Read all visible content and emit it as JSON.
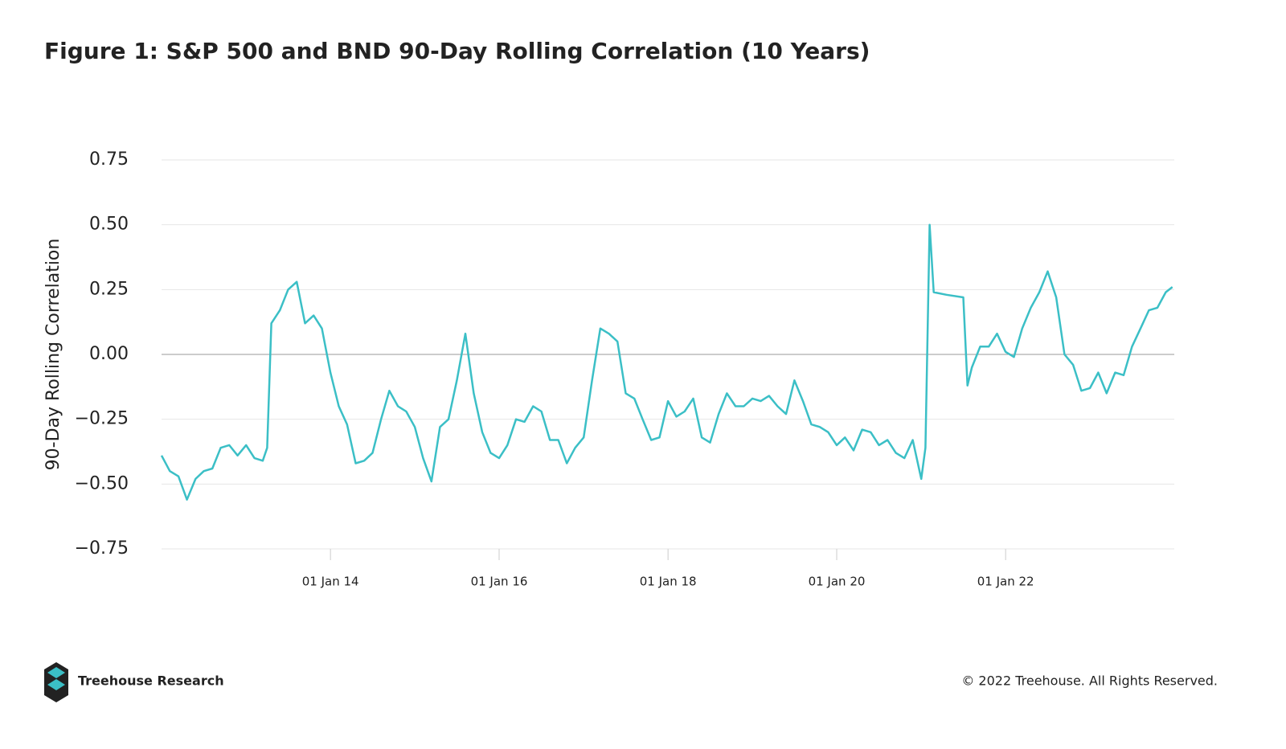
{
  "chart_data": {
    "type": "line",
    "title": "Figure 1: S&P 500 and BND 90-Day Rolling Correlation (10 Years)",
    "y_label": "90-Day Rolling Correlation",
    "color": "#3bbfc6",
    "x": [
      "2012-01-01",
      "2012-02-06",
      "2012-03-14",
      "2012-04-20",
      "2012-05-27",
      "2012-07-02",
      "2012-08-08",
      "2012-09-13",
      "2012-10-20",
      "2012-11-25",
      "2013-01-01",
      "2013-02-06",
      "2013-03-14",
      "2013-04-02",
      "2013-04-20",
      "2013-05-27",
      "2013-07-02",
      "2013-08-08",
      "2013-09-13",
      "2013-10-20",
      "2013-11-25",
      "2014-01-01",
      "2014-02-06",
      "2014-03-14",
      "2014-04-20",
      "2014-05-27",
      "2014-07-02",
      "2014-08-08",
      "2014-09-13",
      "2014-10-20",
      "2014-11-25",
      "2015-01-01",
      "2015-02-06",
      "2015-03-14",
      "2015-04-20",
      "2015-05-27",
      "2015-07-02",
      "2015-08-08",
      "2015-09-13",
      "2015-10-20",
      "2015-11-25",
      "2016-01-01",
      "2016-02-06",
      "2016-03-14",
      "2016-04-20",
      "2016-05-27",
      "2016-07-02",
      "2016-08-08",
      "2016-09-13",
      "2016-10-20",
      "2016-11-25",
      "2017-01-01",
      "2017-02-06",
      "2017-03-14",
      "2017-04-20",
      "2017-05-27",
      "2017-07-02",
      "2017-08-08",
      "2017-09-13",
      "2017-10-20",
      "2017-11-25",
      "2018-01-01",
      "2018-02-06",
      "2018-03-14",
      "2018-04-20",
      "2018-05-27",
      "2018-07-02",
      "2018-08-08",
      "2018-09-13",
      "2018-10-20",
      "2018-11-25",
      "2019-01-01",
      "2019-02-06",
      "2019-03-14",
      "2019-04-20",
      "2019-05-27",
      "2019-07-02",
      "2019-08-08",
      "2019-09-13",
      "2019-10-20",
      "2019-11-25",
      "2020-01-01",
      "2020-02-06",
      "2020-03-14",
      "2020-04-20",
      "2020-05-27",
      "2020-07-02",
      "2020-08-08",
      "2020-09-13",
      "2020-10-20",
      "2020-11-25",
      "2021-01-01",
      "2021-01-19",
      "2021-02-06",
      "2021-02-24",
      "2021-04-20",
      "2021-07-02",
      "2021-07-20",
      "2021-08-08",
      "2021-09-13",
      "2021-10-20",
      "2021-11-25",
      "2022-01-01",
      "2022-02-06",
      "2022-03-14",
      "2022-04-20",
      "2022-05-27",
      "2022-07-02",
      "2022-08-08",
      "2022-09-13",
      "2022-10-20",
      "2022-11-25",
      "2023-01-01",
      "2023-02-06",
      "2023-03-14",
      "2023-04-20",
      "2023-05-27",
      "2023-07-02",
      "2023-08-08",
      "2023-09-13",
      "2023-10-20",
      "2023-11-25",
      "2023-12-24"
    ],
    "values": [
      -0.39,
      -0.45,
      -0.47,
      -0.56,
      -0.48,
      -0.45,
      -0.44,
      -0.36,
      -0.35,
      -0.39,
      -0.35,
      -0.4,
      -0.41,
      -0.36,
      0.12,
      0.17,
      0.25,
      0.28,
      0.12,
      0.15,
      0.1,
      -0.07,
      -0.2,
      -0.27,
      -0.42,
      -0.41,
      -0.38,
      -0.25,
      -0.14,
      -0.2,
      -0.22,
      -0.28,
      -0.4,
      -0.49,
      -0.28,
      -0.25,
      -0.1,
      0.08,
      -0.15,
      -0.3,
      -0.38,
      -0.4,
      -0.35,
      -0.25,
      -0.26,
      -0.2,
      -0.22,
      -0.33,
      -0.33,
      -0.42,
      -0.36,
      -0.32,
      -0.1,
      0.1,
      0.08,
      0.05,
      -0.15,
      -0.17,
      -0.25,
      -0.33,
      -0.32,
      -0.18,
      -0.24,
      -0.22,
      -0.17,
      -0.32,
      -0.34,
      -0.23,
      -0.15,
      -0.2,
      -0.2,
      -0.17,
      -0.18,
      -0.16,
      -0.2,
      -0.23,
      -0.1,
      -0.18,
      -0.27,
      -0.28,
      -0.3,
      -0.35,
      -0.32,
      -0.37,
      -0.29,
      -0.3,
      -0.35,
      -0.33,
      -0.38,
      -0.4,
      -0.33,
      -0.48,
      -0.36,
      0.5,
      0.24,
      0.23,
      0.22,
      -0.12,
      -0.05,
      0.03,
      0.03,
      0.08,
      0.01,
      -0.01,
      0.1,
      0.18,
      0.24,
      0.32,
      0.22,
      0.0,
      -0.04,
      -0.14,
      -0.13,
      -0.07,
      -0.15,
      -0.07,
      -0.08,
      0.03,
      0.1,
      0.17,
      0.18,
      0.24,
      0.26
    ],
    "xlim": [
      "2012-01-01",
      "2024-01-01"
    ],
    "xticks": [
      {
        "value": "2014-01-01",
        "label": "01 Jan 14"
      },
      {
        "value": "2016-01-01",
        "label": "01 Jan 16"
      },
      {
        "value": "2018-01-01",
        "label": "01 Jan 18"
      },
      {
        "value": "2020-01-01",
        "label": "01 Jan 20"
      },
      {
        "value": "2022-01-01",
        "label": "01 Jan 22"
      }
    ],
    "ylim": [
      -0.75,
      0.75
    ],
    "yticks": [
      {
        "value": -0.75,
        "label": "−0.75"
      },
      {
        "value": -0.5,
        "label": "−0.50"
      },
      {
        "value": -0.25,
        "label": "−0.25"
      },
      {
        "value": 0,
        "label": "0.00"
      },
      {
        "value": 0.25,
        "label": "0.25"
      },
      {
        "value": 0.5,
        "label": "0.50"
      },
      {
        "value": 0.75,
        "label": "0.75"
      }
    ],
    "grid": true
  },
  "footer": {
    "brand": "Treehouse Research",
    "copyright": "© 2022 Treehouse. All Rights Reserved."
  }
}
